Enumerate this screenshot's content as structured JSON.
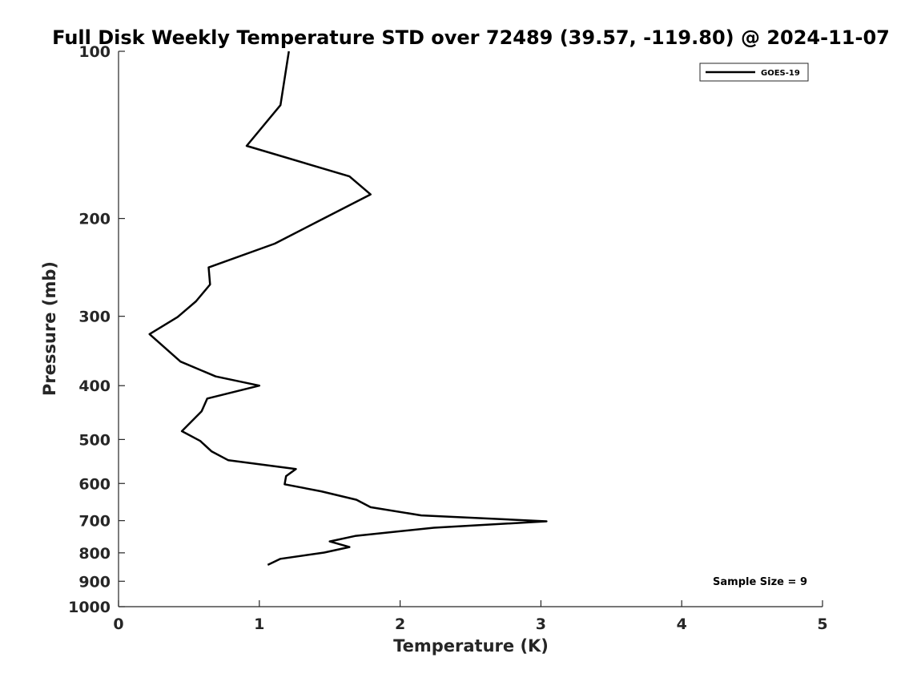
{
  "chart_data": {
    "type": "line",
    "title": "Full Disk Weekly Temperature STD over 72489 (39.57, -119.80) @ 2024-11-07",
    "xlabel": "Temperature (K)",
    "ylabel": "Pressure (mb)",
    "xlim": [
      0,
      5
    ],
    "ylim": [
      100,
      1000
    ],
    "y_scale": "log",
    "y_reversed": true,
    "x_ticks": [
      "0",
      "1",
      "2",
      "3",
      "4",
      "5"
    ],
    "y_ticks": [
      "100",
      "200",
      "300",
      "400",
      "500",
      "600",
      "700",
      "800",
      "900",
      "1000"
    ],
    "grid": false,
    "legend_position": "top-right",
    "annotation": "Sample Size = 9",
    "series": [
      {
        "name": "GOES-19",
        "color": "#000000",
        "points": [
          [
            1.21,
            100
          ],
          [
            1.15,
            125
          ],
          [
            0.91,
            148
          ],
          [
            1.64,
            168
          ],
          [
            1.79,
            181
          ],
          [
            1.44,
            201
          ],
          [
            1.11,
            222
          ],
          [
            0.64,
            245
          ],
          [
            0.65,
            263
          ],
          [
            0.55,
            282
          ],
          [
            0.42,
            301
          ],
          [
            0.22,
            323
          ],
          [
            0.44,
            362
          ],
          [
            0.69,
            385
          ],
          [
            1.0,
            400
          ],
          [
            0.63,
            422
          ],
          [
            0.59,
            445
          ],
          [
            0.45,
            483
          ],
          [
            0.58,
            503
          ],
          [
            0.66,
            525
          ],
          [
            0.78,
            545
          ],
          [
            1.26,
            565
          ],
          [
            1.19,
            582
          ],
          [
            1.18,
            602
          ],
          [
            1.44,
            620
          ],
          [
            1.69,
            642
          ],
          [
            1.79,
            662
          ],
          [
            2.15,
            685
          ],
          [
            3.04,
            702
          ],
          [
            2.24,
            721
          ],
          [
            1.68,
            746
          ],
          [
            1.5,
            763
          ],
          [
            1.64,
            781
          ],
          [
            1.46,
            799
          ],
          [
            1.15,
            820
          ],
          [
            1.06,
            841
          ]
        ]
      }
    ]
  }
}
